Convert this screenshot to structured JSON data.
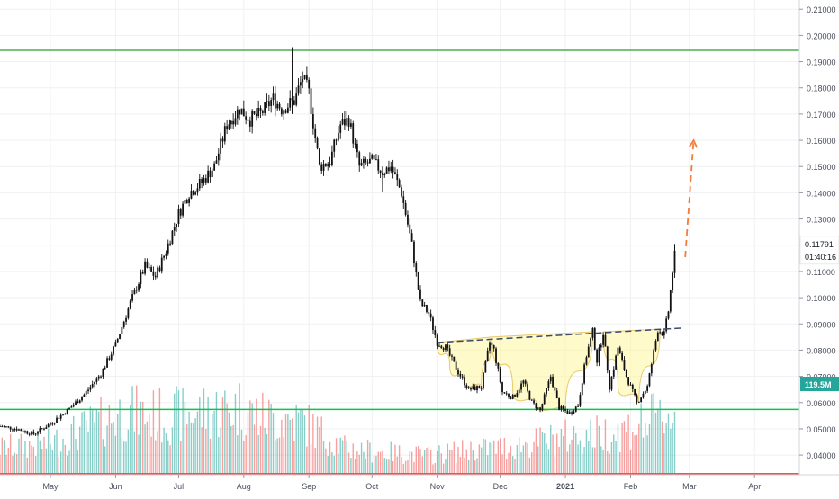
{
  "chart_data": {
    "type": "candlestick",
    "title": "",
    "ylim": [
      0.0325,
      0.2135
    ],
    "y_ticks": [
      "0.04000",
      "0.05000",
      "0.06000",
      "0.07000",
      "0.08000",
      "0.09000",
      "0.10000",
      "0.11000",
      "0.12000",
      "0.13000",
      "0.14000",
      "0.15000",
      "0.16000",
      "0.17000",
      "0.18000",
      "0.19000",
      "0.20000",
      "0.21000"
    ],
    "x_ticks": [
      {
        "label": "May",
        "day": 0
      },
      {
        "label": "Jun",
        "day": 31
      },
      {
        "label": "Jul",
        "day": 61
      },
      {
        "label": "Aug",
        "day": 92
      },
      {
        "label": "Sep",
        "day": 123
      },
      {
        "label": "Oct",
        "day": 153
      },
      {
        "label": "Nov",
        "day": 184
      },
      {
        "label": "Dec",
        "day": 214
      },
      {
        "label": "2021",
        "day": 245
      },
      {
        "label": "Feb",
        "day": 276
      },
      {
        "label": "Mar",
        "day": 304
      },
      {
        "label": "Apr",
        "day": 335
      }
    ],
    "price_path": [
      [
        -24,
        0.051
      ],
      [
        -16,
        0.05
      ],
      [
        -8,
        0.048
      ],
      [
        0,
        0.052
      ],
      [
        8,
        0.057
      ],
      [
        16,
        0.063
      ],
      [
        24,
        0.071
      ],
      [
        31,
        0.082
      ],
      [
        38,
        0.098
      ],
      [
        45,
        0.112
      ],
      [
        50,
        0.108
      ],
      [
        55,
        0.118
      ],
      [
        61,
        0.132
      ],
      [
        66,
        0.14
      ],
      [
        72,
        0.144
      ],
      [
        78,
        0.15
      ],
      [
        84,
        0.166
      ],
      [
        90,
        0.172
      ],
      [
        95,
        0.168
      ],
      [
        100,
        0.17
      ],
      [
        106,
        0.176
      ],
      [
        110,
        0.172
      ],
      [
        116,
        0.175
      ],
      [
        120,
        0.184
      ],
      [
        123,
        0.178
      ],
      [
        128,
        0.15
      ],
      [
        133,
        0.152
      ],
      [
        138,
        0.166
      ],
      [
        142,
        0.168
      ],
      [
        147,
        0.15
      ],
      [
        153,
        0.152
      ],
      [
        158,
        0.148
      ],
      [
        162,
        0.15
      ],
      [
        167,
        0.14
      ],
      [
        172,
        0.12
      ],
      [
        176,
        0.098
      ],
      [
        180,
        0.094
      ],
      [
        184,
        0.083
      ],
      [
        188,
        0.081
      ],
      [
        193,
        0.073
      ],
      [
        199,
        0.065
      ],
      [
        205,
        0.066
      ],
      [
        209,
        0.083
      ],
      [
        211,
        0.08
      ],
      [
        215,
        0.064
      ],
      [
        220,
        0.062
      ],
      [
        225,
        0.068
      ],
      [
        229,
        0.06
      ],
      [
        233,
        0.057
      ],
      [
        238,
        0.07
      ],
      [
        242,
        0.058
      ],
      [
        247,
        0.056
      ],
      [
        251,
        0.059
      ],
      [
        255,
        0.078
      ],
      [
        258,
        0.087
      ],
      [
        260,
        0.076
      ],
      [
        263,
        0.087
      ],
      [
        266,
        0.066
      ],
      [
        270,
        0.081
      ],
      [
        274,
        0.07
      ],
      [
        279,
        0.06
      ],
      [
        284,
        0.066
      ],
      [
        289,
        0.088
      ],
      [
        292,
        0.086
      ],
      [
        294,
        0.095
      ],
      [
        296,
        0.11
      ],
      [
        297,
        0.1179
      ]
    ],
    "volume_profile": [
      [
        -24,
        0.3
      ],
      [
        0,
        0.35
      ],
      [
        20,
        0.55
      ],
      [
        35,
        0.7
      ],
      [
        55,
        0.65
      ],
      [
        70,
        0.7
      ],
      [
        90,
        0.75
      ],
      [
        100,
        0.65
      ],
      [
        120,
        0.6
      ],
      [
        140,
        0.3
      ],
      [
        160,
        0.25
      ],
      [
        180,
        0.22
      ],
      [
        200,
        0.28
      ],
      [
        220,
        0.32
      ],
      [
        245,
        0.42
      ],
      [
        270,
        0.48
      ],
      [
        297,
        0.7
      ]
    ],
    "volume_max_label": "119.5M",
    "horizontal_lines": [
      {
        "value": 0.1943,
        "color": "#4caf50"
      },
      {
        "value": 0.0574,
        "color": "#00c853"
      }
    ],
    "neckline": {
      "start": [
        184,
        0.0829
      ],
      "end": [
        300,
        0.0884
      ],
      "color": "#3b4a6b"
    },
    "cup_handle_patterns": [
      {
        "points": [
          [
            184,
            0.0829
          ],
          [
            190,
            0.074
          ],
          [
            197,
            0.067
          ],
          [
            205,
            0.066
          ],
          [
            210,
            0.085
          ]
        ]
      },
      {
        "points": [
          [
            210,
            0.085
          ],
          [
            220,
            0.064
          ],
          [
            232,
            0.058
          ],
          [
            245,
            0.057
          ],
          [
            258,
            0.087
          ]
        ]
      },
      {
        "points": [
          [
            263,
            0.087
          ],
          [
            270,
            0.066
          ],
          [
            280,
            0.06
          ],
          [
            290,
            0.088
          ]
        ]
      }
    ],
    "projection_arrow": {
      "start": [
        302,
        0.1155
      ],
      "end": [
        306,
        0.16
      ],
      "color": "#f57c3a"
    },
    "last_price": {
      "value": 0.1179,
      "label": "0.11791",
      "countdown": "01:40:16",
      "color": "#ffffff"
    },
    "volume_badge_color": "#26a69a",
    "colors": {
      "up": "#26a69a",
      "down": "#ef5350",
      "candle": "#111111",
      "grid": "#eef0f3",
      "axis_text": "#4a4f5c"
    }
  }
}
